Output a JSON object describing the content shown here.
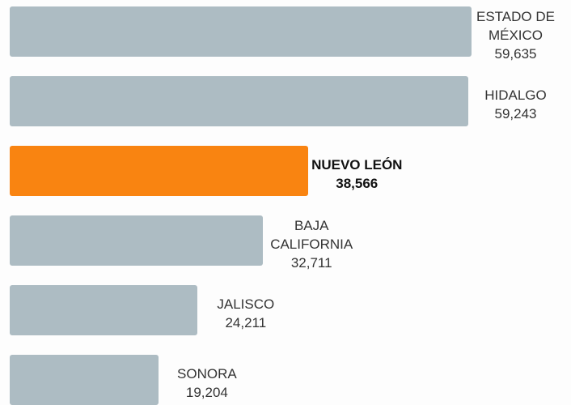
{
  "chart_data": {
    "type": "bar",
    "orientation": "horizontal",
    "categories": [
      "ESTADO DE MÉXICO",
      "HIDALGO",
      "NUEVO LEÓN",
      "BAJA CALIFORNIA",
      "JALISCO",
      "SONORA"
    ],
    "values": [
      59635,
      59243,
      38566,
      32711,
      24211,
      19204
    ],
    "value_labels": [
      "59,635",
      "59,243",
      "38,566",
      "32,711",
      "24,211",
      "19,204"
    ],
    "colors": [
      "#adbcc3",
      "#adbcc3",
      "#f98411",
      "#adbcc3",
      "#adbcc3",
      "#adbcc3"
    ]
  }
}
